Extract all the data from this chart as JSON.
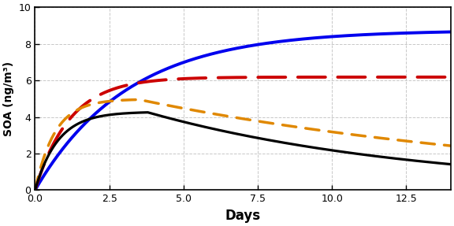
{
  "xlabel": "Days",
  "ylabel": "SOA (ng/m³)",
  "xlim": [
    0,
    14
  ],
  "ylim": [
    0,
    10
  ],
  "xticks": [
    0.0,
    2.5,
    5.0,
    7.5,
    10.0,
    12.5
  ],
  "yticks": [
    0,
    2,
    4,
    6,
    8,
    10
  ],
  "background_color": "#ffffff",
  "grid_color": "#c8c8c8",
  "lines": [
    {
      "name": "blue_solid",
      "color": "#0000ee",
      "linewidth": 2.8,
      "params": {
        "a": 8.75,
        "b": 0.32
      }
    },
    {
      "name": "red_dashed",
      "color": "#cc0000",
      "linewidth": 2.8,
      "params": {
        "a": 6.18,
        "b": 0.85
      }
    },
    {
      "name": "orange_dotted",
      "color": "#e08800",
      "linewidth": 2.5,
      "params": {
        "peak": 4.95,
        "peak_t": 3.5,
        "end": 3.15,
        "rise_k": 1.5,
        "decay_k": 0.068
      }
    },
    {
      "name": "black_solid",
      "color": "#000000",
      "linewidth": 2.3,
      "params": {
        "peak": 4.25,
        "peak_t": 3.8,
        "end": 1.35,
        "rise_k": 1.3,
        "decay_k": 0.108
      }
    }
  ]
}
